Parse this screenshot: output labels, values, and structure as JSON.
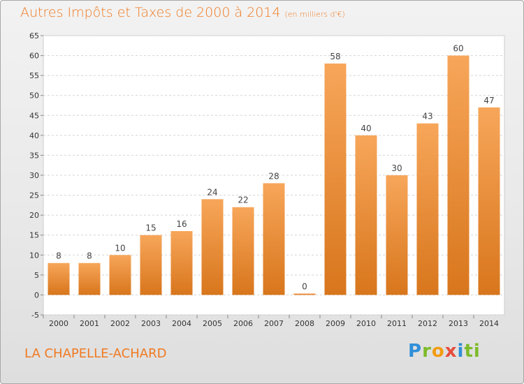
{
  "header": {
    "title": "Autres Impôts et Taxes de 2000 à 2014",
    "unit": "(en milliers d'€)"
  },
  "footer": {
    "place": "LA CHAPELLE-ACHARD",
    "logo": "Proxiti"
  },
  "colors": {
    "accent": "#ef7a22",
    "bar_light": "#f7a65a",
    "bar_dark": "#d8761c"
  },
  "chart_data": {
    "type": "bar",
    "title": "Autres Impôts et Taxes de 2000 à 2014",
    "subtitle": "(en milliers d'€)",
    "categories": [
      "2000",
      "2001",
      "2002",
      "2003",
      "2004",
      "2005",
      "2006",
      "2007",
      "2008",
      "2009",
      "2010",
      "2011",
      "2012",
      "2013",
      "2014"
    ],
    "values": [
      8,
      8,
      10,
      15,
      16,
      24,
      22,
      28,
      0,
      58,
      40,
      30,
      43,
      60,
      47
    ],
    "ylim": [
      -5,
      65
    ],
    "yticks": [
      -5,
      0,
      5,
      10,
      15,
      20,
      25,
      30,
      35,
      40,
      45,
      50,
      55,
      60,
      65
    ],
    "grid": true,
    "xlabel": "",
    "ylabel": ""
  }
}
